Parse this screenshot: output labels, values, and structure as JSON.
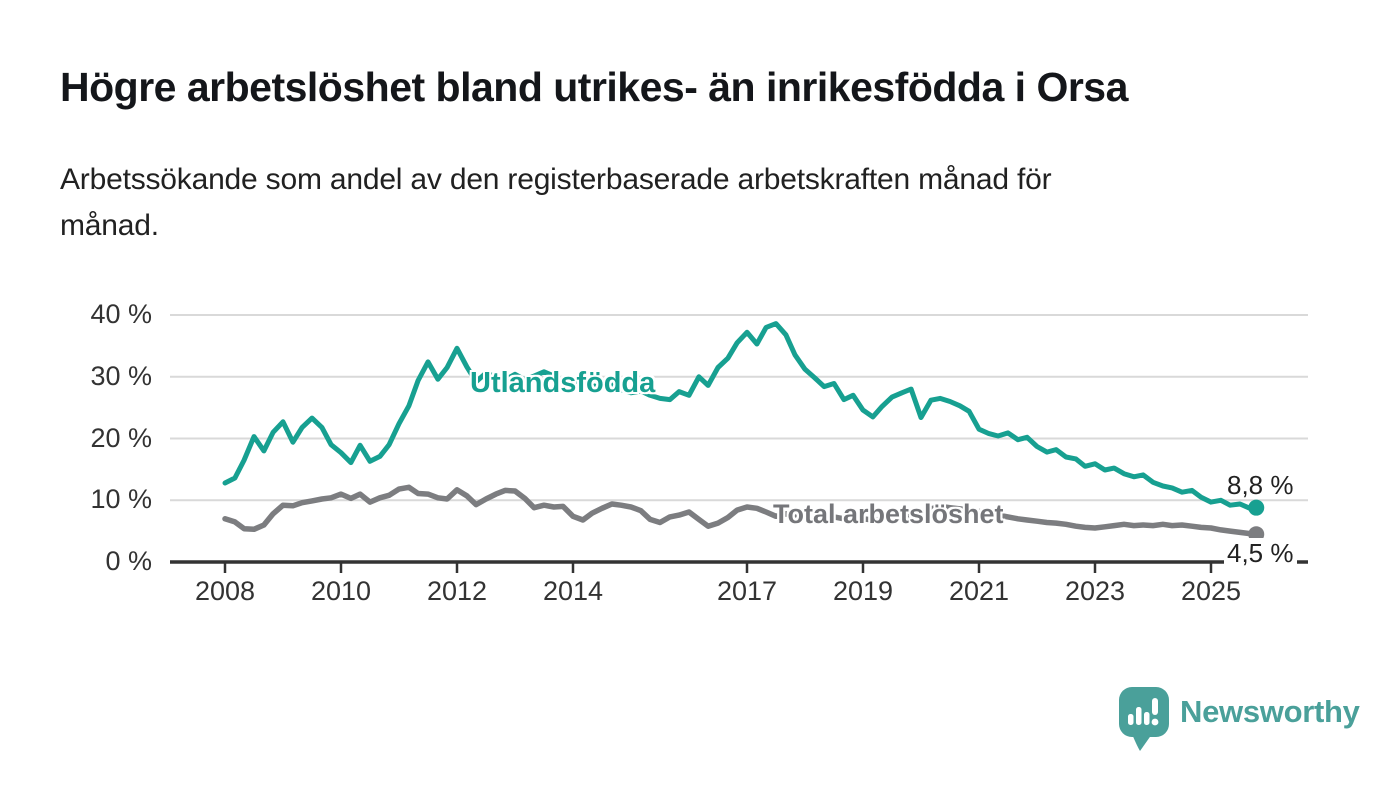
{
  "header": {
    "title": "Högre arbetslöshet bland utrikes- än inrikesfödda i Orsa",
    "subtitle_lines": [
      "Arbetssökande som andel av den registerbaserade arbetskraften månad för",
      "månad."
    ]
  },
  "chart_data": {
    "type": "line",
    "title": "Högre arbetslöshet bland utrikes- än inrikesfödda i Orsa",
    "subtitle": "Arbetssökande som andel av den registerbaserade arbetskraften månad för månad.",
    "unit": "%",
    "grid": "horizontal",
    "legend_position": "inline-labels",
    "xlim": [
      2008,
      2025.78
    ],
    "ylim": [
      0,
      40
    ],
    "xticks": {
      "values": [
        2008,
        2010,
        2012,
        2014,
        2017,
        2019,
        2021,
        2023,
        2025
      ],
      "labels": [
        "2008",
        "2010",
        "2012",
        "2014",
        "2017",
        "2019",
        "2021",
        "2023",
        "2025"
      ]
    },
    "yticks": {
      "values": [
        0,
        10,
        20,
        30,
        40
      ],
      "labels": [
        "0 %",
        "10 %",
        "20 %",
        "30 %",
        "40 %"
      ]
    },
    "x": [
      2008,
      2008.17,
      2008.33,
      2008.5,
      2008.67,
      2008.83,
      2009,
      2009.17,
      2009.33,
      2009.5,
      2009.67,
      2009.83,
      2010,
      2010.17,
      2010.33,
      2010.5,
      2010.67,
      2010.83,
      2011,
      2011.17,
      2011.33,
      2011.5,
      2011.67,
      2011.83,
      2012,
      2012.17,
      2012.33,
      2012.5,
      2012.67,
      2012.83,
      2013,
      2013.17,
      2013.33,
      2013.5,
      2013.67,
      2013.83,
      2014,
      2014.17,
      2014.33,
      2014.5,
      2014.67,
      2014.83,
      2015,
      2015.17,
      2015.33,
      2015.5,
      2015.67,
      2015.83,
      2016,
      2016.17,
      2016.33,
      2016.5,
      2016.67,
      2016.83,
      2017,
      2017.17,
      2017.33,
      2017.5,
      2017.67,
      2017.83,
      2018,
      2018.17,
      2018.33,
      2018.5,
      2018.67,
      2018.83,
      2019,
      2019.17,
      2019.33,
      2019.5,
      2019.67,
      2019.83,
      2020,
      2020.17,
      2020.33,
      2020.5,
      2020.67,
      2020.83,
      2021,
      2021.17,
      2021.33,
      2021.5,
      2021.67,
      2021.83,
      2022,
      2022.17,
      2022.33,
      2022.5,
      2022.67,
      2022.83,
      2023,
      2023.17,
      2023.33,
      2023.5,
      2023.67,
      2023.83,
      2024,
      2024.17,
      2024.33,
      2024.5,
      2024.67,
      2024.83,
      2025,
      2025.17,
      2025.33,
      2025.5,
      2025.67,
      2025.78
    ],
    "series": [
      {
        "name": "Utlandsfödda",
        "color": "#17a091",
        "label_color": "#17a091",
        "stroke_width": 5,
        "end_label": "8,8 %",
        "end_value": 8.8,
        "values": [
          12.8,
          13.6,
          16.5,
          20.3,
          18.0,
          21.0,
          22.7,
          19.4,
          21.8,
          23.3,
          21.8,
          19.0,
          17.7,
          16.1,
          18.9,
          16.3,
          17.1,
          19.0,
          22.4,
          25.3,
          29.4,
          32.4,
          29.6,
          31.5,
          34.6,
          31.6,
          29.2,
          30.6,
          30.0,
          29.5,
          30.4,
          29.5,
          30.1,
          30.8,
          30.1,
          29.3,
          29.0,
          29.5,
          28.6,
          28.2,
          28.7,
          27.9,
          27.4,
          27.7,
          27.0,
          26.5,
          26.3,
          27.6,
          27.0,
          30.0,
          28.6,
          31.5,
          33.0,
          35.5,
          37.2,
          35.3,
          38.0,
          38.6,
          36.8,
          33.5,
          31.2,
          29.8,
          28.4,
          28.9,
          26.3,
          27.0,
          24.6,
          23.5,
          25.2,
          26.7,
          27.4,
          28.0,
          23.4,
          26.2,
          26.5,
          26.0,
          25.3,
          24.4,
          21.5,
          20.8,
          20.4,
          20.9,
          19.8,
          20.2,
          18.7,
          17.8,
          18.2,
          17.0,
          16.7,
          15.5,
          15.9,
          14.9,
          15.2,
          14.3,
          13.8,
          14.1,
          12.9,
          12.3,
          12.0,
          11.3,
          11.6,
          10.5,
          9.7,
          10.0,
          9.2,
          9.4,
          8.7,
          8.8
        ]
      },
      {
        "name": "Total arbetslöshet",
        "color": "#7c7d80",
        "label_color": "#75767a",
        "stroke_width": 5.5,
        "end_label": "4,5 %",
        "end_value": 4.5,
        "values": [
          7.0,
          6.5,
          5.4,
          5.3,
          6.0,
          7.8,
          9.2,
          9.1,
          9.6,
          9.9,
          10.2,
          10.4,
          11.0,
          10.3,
          11.0,
          9.7,
          10.4,
          10.8,
          11.8,
          12.1,
          11.1,
          11.0,
          10.4,
          10.2,
          11.7,
          10.7,
          9.3,
          10.2,
          11.0,
          11.6,
          11.5,
          10.3,
          8.8,
          9.2,
          8.9,
          9.0,
          7.4,
          6.8,
          7.9,
          8.7,
          9.4,
          9.2,
          8.9,
          8.3,
          6.9,
          6.4,
          7.3,
          7.6,
          8.1,
          6.9,
          5.8,
          6.3,
          7.2,
          8.4,
          8.9,
          8.7,
          8.1,
          7.4,
          7.8,
          7.5,
          7.2,
          7.0,
          7.1,
          7.3,
          7.0,
          7.2,
          7.0,
          6.8,
          6.9,
          7.0,
          7.2,
          7.4,
          7.8,
          8.6,
          9.0,
          8.8,
          8.6,
          8.4,
          8.2,
          7.9,
          7.6,
          7.3,
          7.0,
          6.8,
          6.6,
          6.4,
          6.3,
          6.1,
          5.8,
          5.6,
          5.5,
          5.7,
          5.9,
          6.1,
          5.9,
          6.0,
          5.9,
          6.1,
          5.9,
          6.0,
          5.8,
          5.6,
          5.5,
          5.2,
          5.0,
          4.8,
          4.6,
          4.5
        ]
      }
    ],
    "style": {
      "grid_color": "#d9d9d9",
      "axis_color": "#333333",
      "tick_label_color": "#333333"
    }
  },
  "footer": {
    "brand": "Newsworthy"
  }
}
